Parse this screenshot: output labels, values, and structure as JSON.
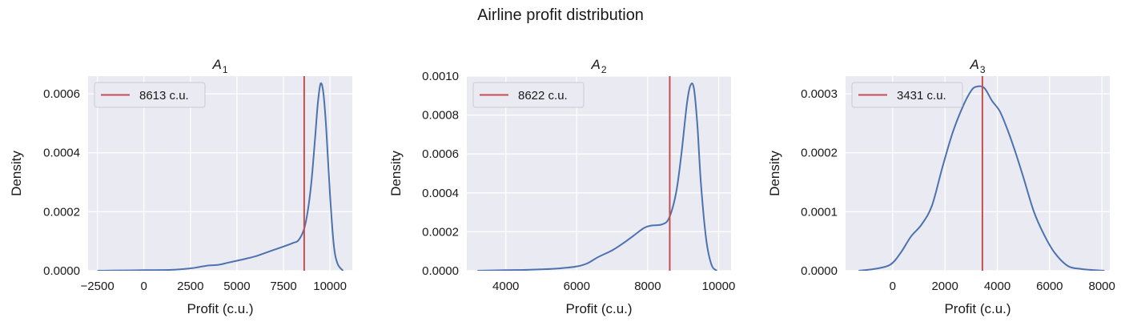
{
  "figure": {
    "title": "Airline profit distribution"
  },
  "colors": {
    "background": "#eaeaf2",
    "grid": "#ffffff",
    "kde": "#4c72b0",
    "vline": "#c44e52"
  },
  "chart_data": [
    {
      "type": "line",
      "title": "A",
      "title_subscript": "1",
      "xlabel": "Profit (c.u.)",
      "ylabel": "Density",
      "xlim": [
        -3000,
        11200
      ],
      "ylim": [
        0,
        0.00066
      ],
      "xticks": [
        -2500,
        0,
        2500,
        5000,
        7500,
        10000
      ],
      "xtick_labels": [
        "−2500",
        "0",
        "2500",
        "5000",
        "7500",
        "10000"
      ],
      "yticks": [
        0,
        0.0002,
        0.0004,
        0.0006
      ],
      "ytick_labels": [
        "0.0000",
        "0.0002",
        "0.0004",
        "0.0006"
      ],
      "grid": true,
      "legend_position": "upper-left",
      "series": [
        {
          "x": [
            -2500,
            -1000,
            0,
            1500,
            2500,
            3000,
            3500,
            4000,
            4500,
            5000,
            5500,
            6000,
            6500,
            7000,
            7500,
            8000,
            8300,
            8600,
            8800,
            9000,
            9200,
            9350,
            9500,
            9650,
            9800,
            10000,
            10200,
            10400,
            10700
          ],
          "y": [
            0,
            1e-06,
            2e-06,
            3e-06,
            8e-06,
            1.3e-05,
            1.8e-05,
            2e-05,
            2.7e-05,
            3.4e-05,
            4.1e-05,
            4.9e-05,
            6e-05,
            7.1e-05,
            8.2e-05,
            9.4e-05,
            0.000103,
            0.00014,
            0.0002,
            0.0003,
            0.00045,
            0.00057,
            0.000635,
            0.0006,
            0.00048,
            0.00026,
            9e-05,
            2.5e-05,
            0
          ]
        }
      ],
      "vline": {
        "x": 8613,
        "label": "8613 c.u."
      }
    },
    {
      "type": "line",
      "title": "A",
      "title_subscript": "2",
      "xlabel": "Profit (c.u.)",
      "ylabel": "Density",
      "xlim": [
        2900,
        10350
      ],
      "ylim": [
        0,
        0.001
      ],
      "xticks": [
        4000,
        6000,
        8000,
        10000
      ],
      "xtick_labels": [
        "4000",
        "6000",
        "8000",
        "10000"
      ],
      "yticks": [
        0,
        0.0002,
        0.0004,
        0.0006,
        0.0008,
        0.001
      ],
      "ytick_labels": [
        "0.0000",
        "0.0002",
        "0.0004",
        "0.0006",
        "0.0008",
        "0.0010"
      ],
      "grid": true,
      "legend_position": "upper-left",
      "series": [
        {
          "x": [
            3200,
            4000,
            4500,
            5000,
            5500,
            6000,
            6300,
            6600,
            7000,
            7300,
            7600,
            7900,
            8100,
            8400,
            8600,
            8800,
            8950,
            9100,
            9200,
            9300,
            9400,
            9500,
            9650,
            9800,
            9950
          ],
          "y": [
            0,
            3e-06,
            4e-06,
            7e-06,
            1.2e-05,
            2.2e-05,
            3.8e-05,
            7e-05,
            0.000105,
            0.00014,
            0.00018,
            0.00022,
            0.000232,
            0.000238,
            0.00027,
            0.0004,
            0.0006,
            0.00085,
            0.00095,
            0.00094,
            0.00075,
            0.00045,
            0.00016,
            3e-05,
            0
          ]
        }
      ],
      "vline": {
        "x": 8622,
        "label": "8622 c.u."
      }
    },
    {
      "type": "line",
      "title": "A",
      "title_subscript": "3",
      "xlabel": "Profit (c.u.)",
      "ylabel": "Density",
      "xlim": [
        -1800,
        8300
      ],
      "ylim": [
        0,
        0.00033
      ],
      "xticks": [
        0,
        2000,
        4000,
        6000,
        8000
      ],
      "xtick_labels": [
        "0",
        "2000",
        "4000",
        "6000",
        "8000"
      ],
      "yticks": [
        0,
        0.0001,
        0.0002,
        0.0003
      ],
      "ytick_labels": [
        "0.0000",
        "0.0001",
        "0.0002",
        "0.0003"
      ],
      "grid": true,
      "legend_position": "upper-left",
      "series": [
        {
          "x": [
            -1300,
            -700,
            -100,
            300,
            700,
            1100,
            1500,
            1900,
            2300,
            2700,
            3000,
            3200,
            3500,
            3800,
            4100,
            4400,
            4700,
            5000,
            5400,
            5800,
            6200,
            6700,
            7200,
            7700,
            8100
          ],
          "y": [
            0,
            3e-06,
            1e-05,
            3e-05,
            5.8e-05,
            7.8e-05,
            0.00011,
            0.000175,
            0.000235,
            0.00028,
            0.000305,
            0.000312,
            0.00031,
            0.000288,
            0.00027,
            0.000238,
            0.0002,
            0.000158,
            0.0001,
            6e-05,
            3e-05,
            8e-06,
            3e-06,
            1e-06,
            0
          ]
        }
      ],
      "vline": {
        "x": 3431,
        "label": "3431 c.u."
      }
    }
  ]
}
